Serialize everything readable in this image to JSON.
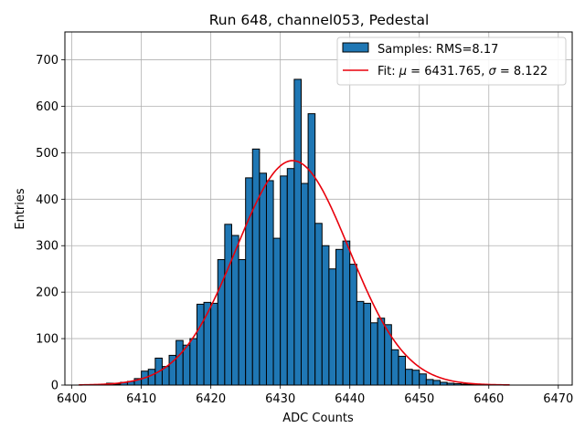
{
  "chart_data": {
    "type": "bar",
    "title": "Run 648, channel053, Pedestal",
    "xlabel": "ADC Counts",
    "ylabel": "Entries",
    "xlim": [
      6399,
      6472
    ],
    "ylim": [
      0,
      760
    ],
    "xticks": [
      6400,
      6410,
      6420,
      6430,
      6440,
      6450,
      6460,
      6470
    ],
    "yticks": [
      0,
      100,
      200,
      300,
      400,
      500,
      600,
      700
    ],
    "grid": true,
    "legend_position": "top-right",
    "bin_width": 1,
    "histogram": {
      "name": "Samples: RMS=8.17",
      "color": "#1f77b4",
      "bin_edges_start": 6405,
      "counts": [
        4,
        2,
        6,
        8,
        14,
        30,
        34,
        58,
        40,
        64,
        96,
        86,
        100,
        174,
        178,
        176,
        270,
        346,
        322,
        270,
        446,
        508,
        456,
        440,
        316,
        450,
        466,
        658,
        434,
        584,
        348,
        300,
        250,
        292,
        310,
        260,
        180,
        176,
        134,
        144,
        130,
        76,
        62,
        34,
        32,
        24,
        12,
        10,
        6,
        4,
        3,
        2,
        1,
        1,
        1,
        0,
        0,
        0
      ]
    },
    "fit": {
      "name": "Fit: μ = 6431.765, σ = 8.122",
      "label_prefix": "Fit: ",
      "mu_symbol": "μ",
      "mu_text": " = 6431.765, ",
      "sigma_symbol": "σ",
      "sigma_text": " = 8.122",
      "color": "#e8000b",
      "mu": 6431.765,
      "sigma": 8.122,
      "amplitude": 483,
      "x_range": [
        6401,
        6463
      ]
    }
  }
}
